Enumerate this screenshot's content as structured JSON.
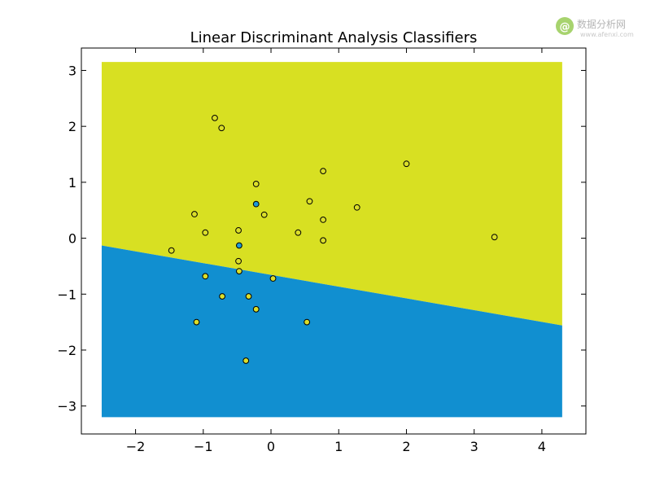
{
  "watermark": {
    "symbol": "@",
    "text": "数据分析网",
    "url": "www.afenxi.com",
    "logo_color": "#a7d36e"
  },
  "chart_data": {
    "type": "scatter",
    "title": "Linear Discriminant Analysis Classifiers",
    "xlabel": "",
    "ylabel": "",
    "xlim": [
      -2.8,
      4.65
    ],
    "ylim": [
      -3.5,
      3.4
    ],
    "xticks": [
      -2,
      -1,
      0,
      1,
      2,
      3,
      4
    ],
    "yticks": [
      -3,
      -2,
      -1,
      0,
      1,
      2,
      3
    ],
    "grid": false,
    "region_extent": {
      "x": [
        -2.5,
        4.3
      ],
      "y": [
        -3.2,
        3.15
      ]
    },
    "decision_boundary": {
      "x": [
        -2.5,
        4.3
      ],
      "y": [
        -0.13,
        -1.56
      ]
    },
    "region_colors": {
      "upper": "#d8e022",
      "lower": "#118fd0"
    },
    "point_colors": {
      "upper_class": "#dade2a",
      "lower_class": "#1f9ad6"
    },
    "points": [
      {
        "x": -0.83,
        "y": 2.15,
        "class": "upper"
      },
      {
        "x": -0.73,
        "y": 1.97,
        "class": "upper"
      },
      {
        "x": -0.22,
        "y": 0.97,
        "class": "upper"
      },
      {
        "x": 0.77,
        "y": 1.2,
        "class": "upper"
      },
      {
        "x": 2.0,
        "y": 1.33,
        "class": "upper"
      },
      {
        "x": 0.57,
        "y": 0.66,
        "class": "upper"
      },
      {
        "x": 1.27,
        "y": 0.55,
        "class": "upper"
      },
      {
        "x": -1.13,
        "y": 0.43,
        "class": "upper"
      },
      {
        "x": -0.1,
        "y": 0.42,
        "class": "upper"
      },
      {
        "x": 0.77,
        "y": 0.33,
        "class": "upper"
      },
      {
        "x": -0.22,
        "y": 0.61,
        "class": "lower"
      },
      {
        "x": -0.97,
        "y": 0.1,
        "class": "upper"
      },
      {
        "x": -0.48,
        "y": 0.14,
        "class": "upper"
      },
      {
        "x": 0.4,
        "y": 0.1,
        "class": "upper"
      },
      {
        "x": 3.3,
        "y": 0.02,
        "class": "upper"
      },
      {
        "x": 0.77,
        "y": -0.04,
        "class": "upper"
      },
      {
        "x": -0.47,
        "y": -0.13,
        "class": "lower"
      },
      {
        "x": -1.47,
        "y": -0.22,
        "class": "upper"
      },
      {
        "x": -0.48,
        "y": -0.41,
        "class": "upper"
      },
      {
        "x": -0.47,
        "y": -0.59,
        "class": "upper"
      },
      {
        "x": -0.97,
        "y": -0.68,
        "class": "upper"
      },
      {
        "x": 0.03,
        "y": -0.72,
        "class": "upper"
      },
      {
        "x": -0.72,
        "y": -1.04,
        "class": "upper"
      },
      {
        "x": -0.33,
        "y": -1.04,
        "class": "upper"
      },
      {
        "x": -0.22,
        "y": -1.27,
        "class": "upper"
      },
      {
        "x": -1.1,
        "y": -1.5,
        "class": "upper"
      },
      {
        "x": 0.53,
        "y": -1.5,
        "class": "upper"
      },
      {
        "x": -0.37,
        "y": -2.19,
        "class": "upper"
      }
    ]
  }
}
